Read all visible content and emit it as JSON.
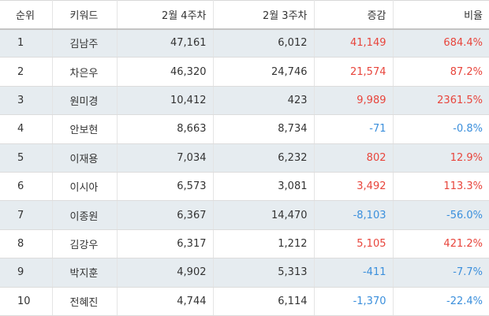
{
  "table": {
    "headers": {
      "rank": "순위",
      "keyword": "키워드",
      "week4": "2월 4주차",
      "week3": "2월 3주차",
      "change": "증감",
      "ratio": "비율"
    },
    "rows": [
      {
        "rank": "1",
        "keyword": "김남주",
        "week4": "47,161",
        "week3": "6,012",
        "change": "41,149",
        "ratio": "684.4%",
        "trend": "up"
      },
      {
        "rank": "2",
        "keyword": "차은우",
        "week4": "46,320",
        "week3": "24,746",
        "change": "21,574",
        "ratio": "87.2%",
        "trend": "up"
      },
      {
        "rank": "3",
        "keyword": "원미경",
        "week4": "10,412",
        "week3": "423",
        "change": "9,989",
        "ratio": "2361.5%",
        "trend": "up"
      },
      {
        "rank": "4",
        "keyword": "안보현",
        "week4": "8,663",
        "week3": "8,734",
        "change": "-71",
        "ratio": "-0.8%",
        "trend": "down"
      },
      {
        "rank": "5",
        "keyword": "이재용",
        "week4": "7,034",
        "week3": "6,232",
        "change": "802",
        "ratio": "12.9%",
        "trend": "up"
      },
      {
        "rank": "6",
        "keyword": "이시아",
        "week4": "6,573",
        "week3": "3,081",
        "change": "3,492",
        "ratio": "113.3%",
        "trend": "up"
      },
      {
        "rank": "7",
        "keyword": "이종원",
        "week4": "6,367",
        "week3": "14,470",
        "change": "-8,103",
        "ratio": "-56.0%",
        "trend": "down"
      },
      {
        "rank": "8",
        "keyword": "김강우",
        "week4": "6,317",
        "week3": "1,212",
        "change": "5,105",
        "ratio": "421.2%",
        "trend": "up"
      },
      {
        "rank": "9",
        "keyword": "박지훈",
        "week4": "4,902",
        "week3": "5,313",
        "change": "-411",
        "ratio": "-7.7%",
        "trend": "down"
      },
      {
        "rank": "10",
        "keyword": "전혜진",
        "week4": "4,744",
        "week3": "6,114",
        "change": "-1,370",
        "ratio": "-22.4%",
        "trend": "down"
      }
    ]
  },
  "colors": {
    "positive": "#e8453c",
    "negative": "#3b8fdc",
    "stripe": "#e6ecf0"
  }
}
